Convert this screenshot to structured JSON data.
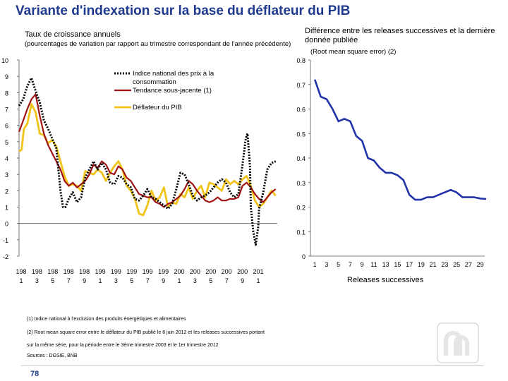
{
  "title": "Variante d'indexation sur la base du déflateur du PIB",
  "left_chart": {
    "subtitle": "Taux de croissance annuels",
    "note": "(pourcentages de variation par rapport au trimestre correspondant de l'année précédente)"
  },
  "right_chart": {
    "subtitle": "Différence entre les releases successives et la dernière donnée publiée",
    "note": "(Root mean square error) (2)",
    "xlabel": "Releases successives"
  },
  "footnotes": {
    "n1": "(1) Indice national à l'exclusion des produits énergétiques et alimentaires",
    "n2a": "(2) Root mean square error entre le déflateur du PIB publié le 6 juin 2012 et les releases successives portant",
    "n2b": "sur la même série, pour la période entre le 3ème trimestre 2003 et le 1er trimestre 2012",
    "source": "Sources : DGSIE, BNB"
  },
  "page_number": "78",
  "colors": {
    "title": "#1f3a8f",
    "cpi": "#000000",
    "core": "#a01414",
    "deflator": "#f0c419",
    "rmse": "#2233aa"
  },
  "chart_data": [
    {
      "type": "line",
      "ylim": [
        -2,
        10
      ],
      "yticks": [
        "10",
        "9",
        "8",
        "7",
        "6",
        "5",
        "4",
        "3",
        "2",
        "1",
        "0",
        "-1",
        "-2"
      ],
      "xlim": [
        1981,
        2012.2
      ],
      "xtick_top": [
        "198",
        "198",
        "198",
        "198",
        "198",
        "199",
        "199",
        "199",
        "199",
        "199",
        "200",
        "200",
        "200",
        "200",
        "200",
        "201"
      ],
      "xtick_bottom": [
        "1",
        "3",
        "5",
        "7",
        "9",
        "1",
        "3",
        "5",
        "7",
        "9",
        "1",
        "3",
        "5",
        "7",
        "9",
        "1"
      ],
      "series": [
        {
          "name": "Indice national des prix à la consommation",
          "label_line1": "Indice national des prix à la",
          "label_line2": "consommation",
          "style": "dotted",
          "points": [
            [
              1981,
              7.2
            ],
            [
              1981.5,
              7.6
            ],
            [
              1982,
              8.4
            ],
            [
              1982.5,
              8.9
            ],
            [
              1983,
              8.1
            ],
            [
              1983.5,
              7.4
            ],
            [
              1984,
              6.3
            ],
            [
              1984.5,
              5.8
            ],
            [
              1985,
              5.2
            ],
            [
              1985.5,
              4.6
            ],
            [
              1986,
              2.0
            ],
            [
              1986.3,
              1.0
            ],
            [
              1986.6,
              1.0
            ],
            [
              1987,
              1.5
            ],
            [
              1987.5,
              1.9
            ],
            [
              1988,
              1.3
            ],
            [
              1988.5,
              1.6
            ],
            [
              1989,
              2.8
            ],
            [
              1989.5,
              3.3
            ],
            [
              1990,
              3.8
            ],
            [
              1990.5,
              3.3
            ],
            [
              1991,
              3.7
            ],
            [
              1991.5,
              3.3
            ],
            [
              1992,
              2.5
            ],
            [
              1992.5,
              2.4
            ],
            [
              1993,
              2.9
            ],
            [
              1993.5,
              2.8
            ],
            [
              1994,
              2.4
            ],
            [
              1994.5,
              2.2
            ],
            [
              1995,
              1.5
            ],
            [
              1995.5,
              1.4
            ],
            [
              1996,
              1.7
            ],
            [
              1996.5,
              2.1
            ],
            [
              1997,
              1.6
            ],
            [
              1997.5,
              1.5
            ],
            [
              1998,
              1.3
            ],
            [
              1998.5,
              1.1
            ],
            [
              1999,
              0.9
            ],
            [
              1999.5,
              1.2
            ],
            [
              2000,
              2.1
            ],
            [
              2000.5,
              3.1
            ],
            [
              2001,
              3.0
            ],
            [
              2001.5,
              2.4
            ],
            [
              2002,
              1.7
            ],
            [
              2002.5,
              1.4
            ],
            [
              2003,
              1.6
            ],
            [
              2003.5,
              1.7
            ],
            [
              2004,
              1.9
            ],
            [
              2004.5,
              2.2
            ],
            [
              2005,
              2.5
            ],
            [
              2005.5,
              2.7
            ],
            [
              2006,
              2.5
            ],
            [
              2006.5,
              1.9
            ],
            [
              2007,
              1.6
            ],
            [
              2007.5,
              1.8
            ],
            [
              2008,
              3.6
            ],
            [
              2008.4,
              5.2
            ],
            [
              2008.6,
              5.5
            ],
            [
              2008.9,
              3.5
            ],
            [
              2009,
              1.0
            ],
            [
              2009.3,
              -0.5
            ],
            [
              2009.6,
              -1.3
            ],
            [
              2009.9,
              -0.2
            ],
            [
              2010,
              0.9
            ],
            [
              2010.5,
              1.9
            ],
            [
              2011,
              3.3
            ],
            [
              2011.5,
              3.7
            ],
            [
              2012,
              3.8
            ]
          ]
        },
        {
          "name": "Tendance sous-jacente (1)",
          "style": "solid",
          "points": [
            [
              1981,
              5.6
            ],
            [
              1981.5,
              6.3
            ],
            [
              1982,
              7.0
            ],
            [
              1982.5,
              7.6
            ],
            [
              1983,
              7.9
            ],
            [
              1983.5,
              6.6
            ],
            [
              1984,
              5.5
            ],
            [
              1984.5,
              4.8
            ],
            [
              1985,
              4.3
            ],
            [
              1985.5,
              3.8
            ],
            [
              1986,
              3.3
            ],
            [
              1986.5,
              2.6
            ],
            [
              1987,
              2.3
            ],
            [
              1987.5,
              2.5
            ],
            [
              1988,
              2.2
            ],
            [
              1988.5,
              2.4
            ],
            [
              1989,
              2.6
            ],
            [
              1989.5,
              3.0
            ],
            [
              1990,
              3.6
            ],
            [
              1990.5,
              3.4
            ],
            [
              1991,
              3.8
            ],
            [
              1991.5,
              3.6
            ],
            [
              1992,
              3.1
            ],
            [
              1992.5,
              3.0
            ],
            [
              1993,
              3.5
            ],
            [
              1993.5,
              3.3
            ],
            [
              1994,
              2.8
            ],
            [
              1994.5,
              2.6
            ],
            [
              1995,
              2.2
            ],
            [
              1995.5,
              1.8
            ],
            [
              1996,
              1.7
            ],
            [
              1996.5,
              1.6
            ],
            [
              1997,
              1.6
            ],
            [
              1997.5,
              1.3
            ],
            [
              1998,
              1.2
            ],
            [
              1998.5,
              1.0
            ],
            [
              1999,
              1.2
            ],
            [
              1999.5,
              1.3
            ],
            [
              2000,
              1.5
            ],
            [
              2000.5,
              1.7
            ],
            [
              2001,
              2.1
            ],
            [
              2001.5,
              2.6
            ],
            [
              2002,
              2.4
            ],
            [
              2002.5,
              2.0
            ],
            [
              2003,
              1.7
            ],
            [
              2003.5,
              1.4
            ],
            [
              2004,
              1.3
            ],
            [
              2004.5,
              1.4
            ],
            [
              2005,
              1.6
            ],
            [
              2005.5,
              1.4
            ],
            [
              2006,
              1.4
            ],
            [
              2006.5,
              1.5
            ],
            [
              2007,
              1.5
            ],
            [
              2007.5,
              1.6
            ],
            [
              2008,
              2.3
            ],
            [
              2008.5,
              2.5
            ],
            [
              2009,
              2.2
            ],
            [
              2009.5,
              1.8
            ],
            [
              2010,
              1.5
            ],
            [
              2010.5,
              1.3
            ],
            [
              2011,
              1.6
            ],
            [
              2011.5,
              1.9
            ],
            [
              2012,
              2.1
            ]
          ]
        },
        {
          "name": "Déflateur du PIB",
          "style": "solid",
          "points": [
            [
              1981,
              4.4
            ],
            [
              1981.3,
              4.5
            ],
            [
              1981.6,
              5.8
            ],
            [
              1982,
              6.1
            ],
            [
              1982.5,
              7.3
            ],
            [
              1983,
              6.8
            ],
            [
              1983.5,
              5.5
            ],
            [
              1984,
              5.4
            ],
            [
              1984.5,
              4.9
            ],
            [
              1985,
              5.1
            ],
            [
              1985.5,
              4.7
            ],
            [
              1986,
              3.8
            ],
            [
              1986.5,
              2.9
            ],
            [
              1987,
              2.3
            ],
            [
              1987.5,
              2.4
            ],
            [
              1988,
              2.3
            ],
            [
              1988.5,
              2.0
            ],
            [
              1989,
              3.2
            ],
            [
              1989.5,
              3.1
            ],
            [
              1990,
              3.0
            ],
            [
              1990.5,
              3.3
            ],
            [
              1991,
              3.1
            ],
            [
              1991.5,
              2.6
            ],
            [
              1992,
              3.1
            ],
            [
              1992.5,
              3.5
            ],
            [
              1993,
              3.8
            ],
            [
              1993.5,
              3.3
            ],
            [
              1994,
              2.3
            ],
            [
              1994.5,
              2.0
            ],
            [
              1995,
              1.5
            ],
            [
              1995.5,
              0.6
            ],
            [
              1996,
              0.5
            ],
            [
              1996.5,
              1.1
            ],
            [
              1997,
              2.0
            ],
            [
              1997.5,
              1.4
            ],
            [
              1998,
              1.6
            ],
            [
              1998.5,
              2.2
            ],
            [
              1999,
              1.0
            ],
            [
              1999.5,
              1.3
            ],
            [
              2000,
              1.2
            ],
            [
              2000.5,
              1.8
            ],
            [
              2001,
              1.6
            ],
            [
              2001.5,
              2.2
            ],
            [
              2002,
              1.5
            ],
            [
              2002.5,
              2.0
            ],
            [
              2003,
              2.3
            ],
            [
              2003.5,
              1.6
            ],
            [
              2004,
              2.5
            ],
            [
              2004.5,
              2.4
            ],
            [
              2005,
              2.2
            ],
            [
              2005.5,
              2.0
            ],
            [
              2006,
              2.7
            ],
            [
              2006.5,
              2.4
            ],
            [
              2007,
              2.6
            ],
            [
              2007.5,
              2.4
            ],
            [
              2008,
              2.7
            ],
            [
              2008.5,
              2.9
            ],
            [
              2009,
              2.3
            ],
            [
              2009.5,
              1.4
            ],
            [
              2010,
              1.0
            ],
            [
              2010.5,
              1.2
            ],
            [
              2011,
              1.6
            ],
            [
              2011.5,
              2.0
            ],
            [
              2012,
              1.7
            ]
          ]
        }
      ]
    },
    {
      "type": "line",
      "ylim": [
        0,
        0.8
      ],
      "yticks": [
        "0.8",
        "0.7",
        "0.6",
        "0.5",
        "0.4",
        "0.3",
        "0.2",
        "0.1",
        "0"
      ],
      "xlim": [
        0,
        30
      ],
      "xticks": [
        "1",
        "3",
        "5",
        "7",
        "9",
        "11",
        "13",
        "15",
        "17",
        "19",
        "21",
        "23",
        "25",
        "27",
        "29"
      ],
      "xlabel": "Releases successives",
      "series": [
        {
          "name": "RMSE",
          "x": [
            1,
            2,
            3,
            4,
            5,
            6,
            7,
            8,
            9,
            10,
            11,
            12,
            13,
            14,
            15,
            16,
            17,
            18,
            19,
            20,
            21,
            22,
            23,
            24,
            25,
            26,
            27,
            28,
            29,
            30
          ],
          "values": [
            0.72,
            0.65,
            0.64,
            0.6,
            0.55,
            0.56,
            0.55,
            0.49,
            0.47,
            0.4,
            0.39,
            0.36,
            0.34,
            0.34,
            0.33,
            0.31,
            0.25,
            0.23,
            0.23,
            0.24,
            0.24,
            0.25,
            0.26,
            0.27,
            0.26,
            0.24,
            0.24,
            0.24,
            0.235,
            0.233
          ]
        }
      ]
    }
  ]
}
